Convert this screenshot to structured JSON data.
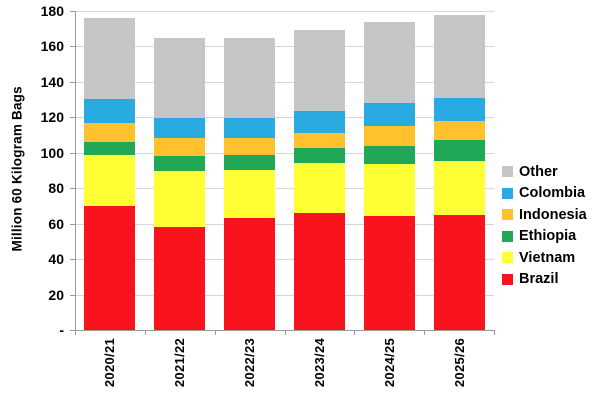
{
  "chart_data": {
    "type": "bar",
    "stacked": true,
    "title": "",
    "xlabel": "",
    "ylabel": "Million 60 Kilogram Bags",
    "ylim": [
      0,
      180
    ],
    "grid": true,
    "legend_position": "right",
    "categories": [
      "2020/21",
      "2021/22",
      "2022/23",
      "2023/24",
      "2024/25",
      "2025/26"
    ],
    "yticks": [
      {
        "value": 180,
        "label": "180"
      },
      {
        "value": 160,
        "label": "160"
      },
      {
        "value": 140,
        "label": "140"
      },
      {
        "value": 120,
        "label": "120"
      },
      {
        "value": 100,
        "label": "100"
      },
      {
        "value": 80,
        "label": "80"
      },
      {
        "value": 60,
        "label": "60"
      },
      {
        "value": 40,
        "label": "40"
      },
      {
        "value": 20,
        "label": "20"
      },
      {
        "value": 0,
        "label": "-"
      }
    ],
    "series": [
      {
        "name": "Brazil",
        "color": "#f9131d",
        "values": [
          70,
          58,
          63,
          66,
          64.5,
          65
        ]
      },
      {
        "name": "Vietnam",
        "color": "#ffff33",
        "values": [
          29,
          31.5,
          27.5,
          28,
          29,
          30.5
        ]
      },
      {
        "name": "Ethiopia",
        "color": "#21a857",
        "values": [
          7,
          8.5,
          8,
          8.5,
          10.5,
          11.5
        ]
      },
      {
        "name": "Indonesia",
        "color": "#ffc12e",
        "values": [
          11,
          10.5,
          10,
          8.5,
          11,
          11
        ]
      },
      {
        "name": "Colombia",
        "color": "#29abe2",
        "values": [
          13.5,
          11,
          11,
          12.5,
          13,
          13
        ]
      },
      {
        "name": "Other",
        "color": "#c6c6c6",
        "values": [
          45.5,
          45.5,
          45,
          46,
          46,
          47
        ]
      }
    ],
    "totals": [
      176,
      165,
      164.5,
      169.5,
      174,
      178
    ],
    "legend_order_top_to_bottom": [
      "Other",
      "Colombia",
      "Indonesia",
      "Ethiopia",
      "Vietnam",
      "Brazil"
    ]
  },
  "colors": {
    "background": "#ffffff",
    "gridline": "#d6d6d6",
    "axis": "#9b9b9b",
    "text": "#000000"
  }
}
